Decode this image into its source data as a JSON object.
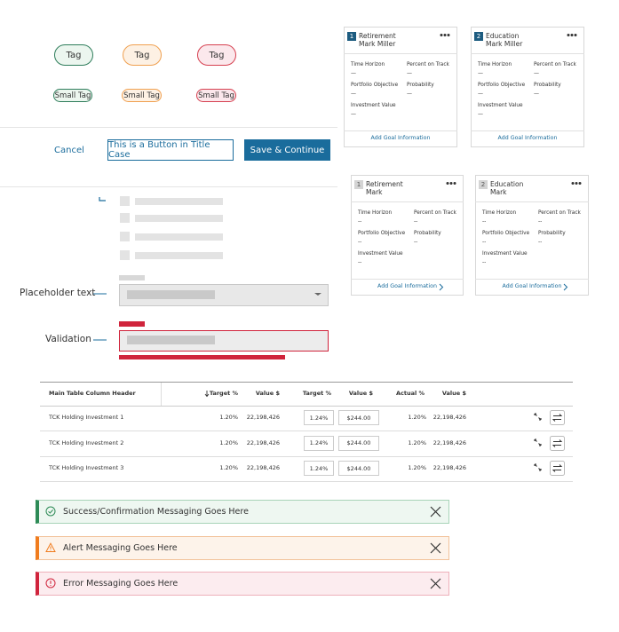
{
  "tags": [
    "Tag",
    "Tag",
    "Tag"
  ],
  "small_tags": [
    "Small Tag",
    "Small Tag",
    "Small Tag"
  ],
  "buttons": {
    "cancel": "Cancel",
    "secondary": "This is a Button in Title Case",
    "primary": "Save & Continue"
  },
  "goal_cards": [
    {
      "number": "1",
      "title": "Retirement",
      "name": "Mark Miller",
      "fields": [
        {
          "label": "Time Horizon",
          "value": "—"
        },
        {
          "label": "Percent on Track",
          "value": "—"
        },
        {
          "label": "Portfolio Objective",
          "value": "—"
        },
        {
          "label": "Probability",
          "value": "—"
        },
        {
          "label": "Investment Value",
          "value": "—"
        }
      ],
      "link": "Add Goal Information"
    },
    {
      "number": "2",
      "title": "Education",
      "name": "Mark Miller",
      "fields": [
        {
          "label": "Time Horizon",
          "value": "—"
        },
        {
          "label": "Percent on Track",
          "value": "—"
        },
        {
          "label": "Portfolio Objective",
          "value": "—"
        },
        {
          "label": "Probability",
          "value": "—"
        },
        {
          "label": "Investment Value",
          "value": "—"
        }
      ],
      "link": "Add Goal Information"
    },
    {
      "number": "1",
      "title": "Retirement",
      "name": "Mark",
      "fields": [
        {
          "label": "Time Horizon",
          "value": "--"
        },
        {
          "label": "Percent on Track",
          "value": "--"
        },
        {
          "label": "Portfolio Objective",
          "value": "--"
        },
        {
          "label": "Probability",
          "value": "--"
        },
        {
          "label": "Investment Value",
          "value": "--"
        }
      ],
      "link": "Add Goal Information"
    },
    {
      "number": "2",
      "title": "Education",
      "name": "Mark",
      "fields": [
        {
          "label": "Time Horizon",
          "value": "--"
        },
        {
          "label": "Percent on Track",
          "value": "--"
        },
        {
          "label": "Portfolio Objective",
          "value": "--"
        },
        {
          "label": "Probability",
          "value": "--"
        },
        {
          "label": "Investment Value",
          "value": "--"
        }
      ],
      "link": "Add Goal Information"
    }
  ],
  "form": {
    "placeholder_label": "Placeholder text",
    "validation_label": "Validation"
  },
  "table": {
    "headers": [
      "Main Table Column Header",
      "Target %",
      "Value $",
      "Target %",
      "Value $",
      "Actual %",
      "Value $"
    ],
    "rows": [
      [
        "TCK Holding Investment 1",
        "1.20%",
        "22,198,426",
        "1.24%",
        "$244.00",
        "1.20%",
        "22,198,426"
      ],
      [
        "TCK Holding Investment 2",
        "1.20%",
        "22,198,426",
        "1.24%",
        "$244.00",
        "1.20%",
        "22,198,426"
      ],
      [
        "TCK Holding Investment 3",
        "1.20%",
        "22,198,426",
        "1.24%",
        "$244.00",
        "1.20%",
        "22,198,426"
      ]
    ]
  },
  "messages": [
    "Success/Confirmation Messaging Goes Here",
    "Alert Messaging Goes Here",
    "Error Messaging Goes Here"
  ]
}
